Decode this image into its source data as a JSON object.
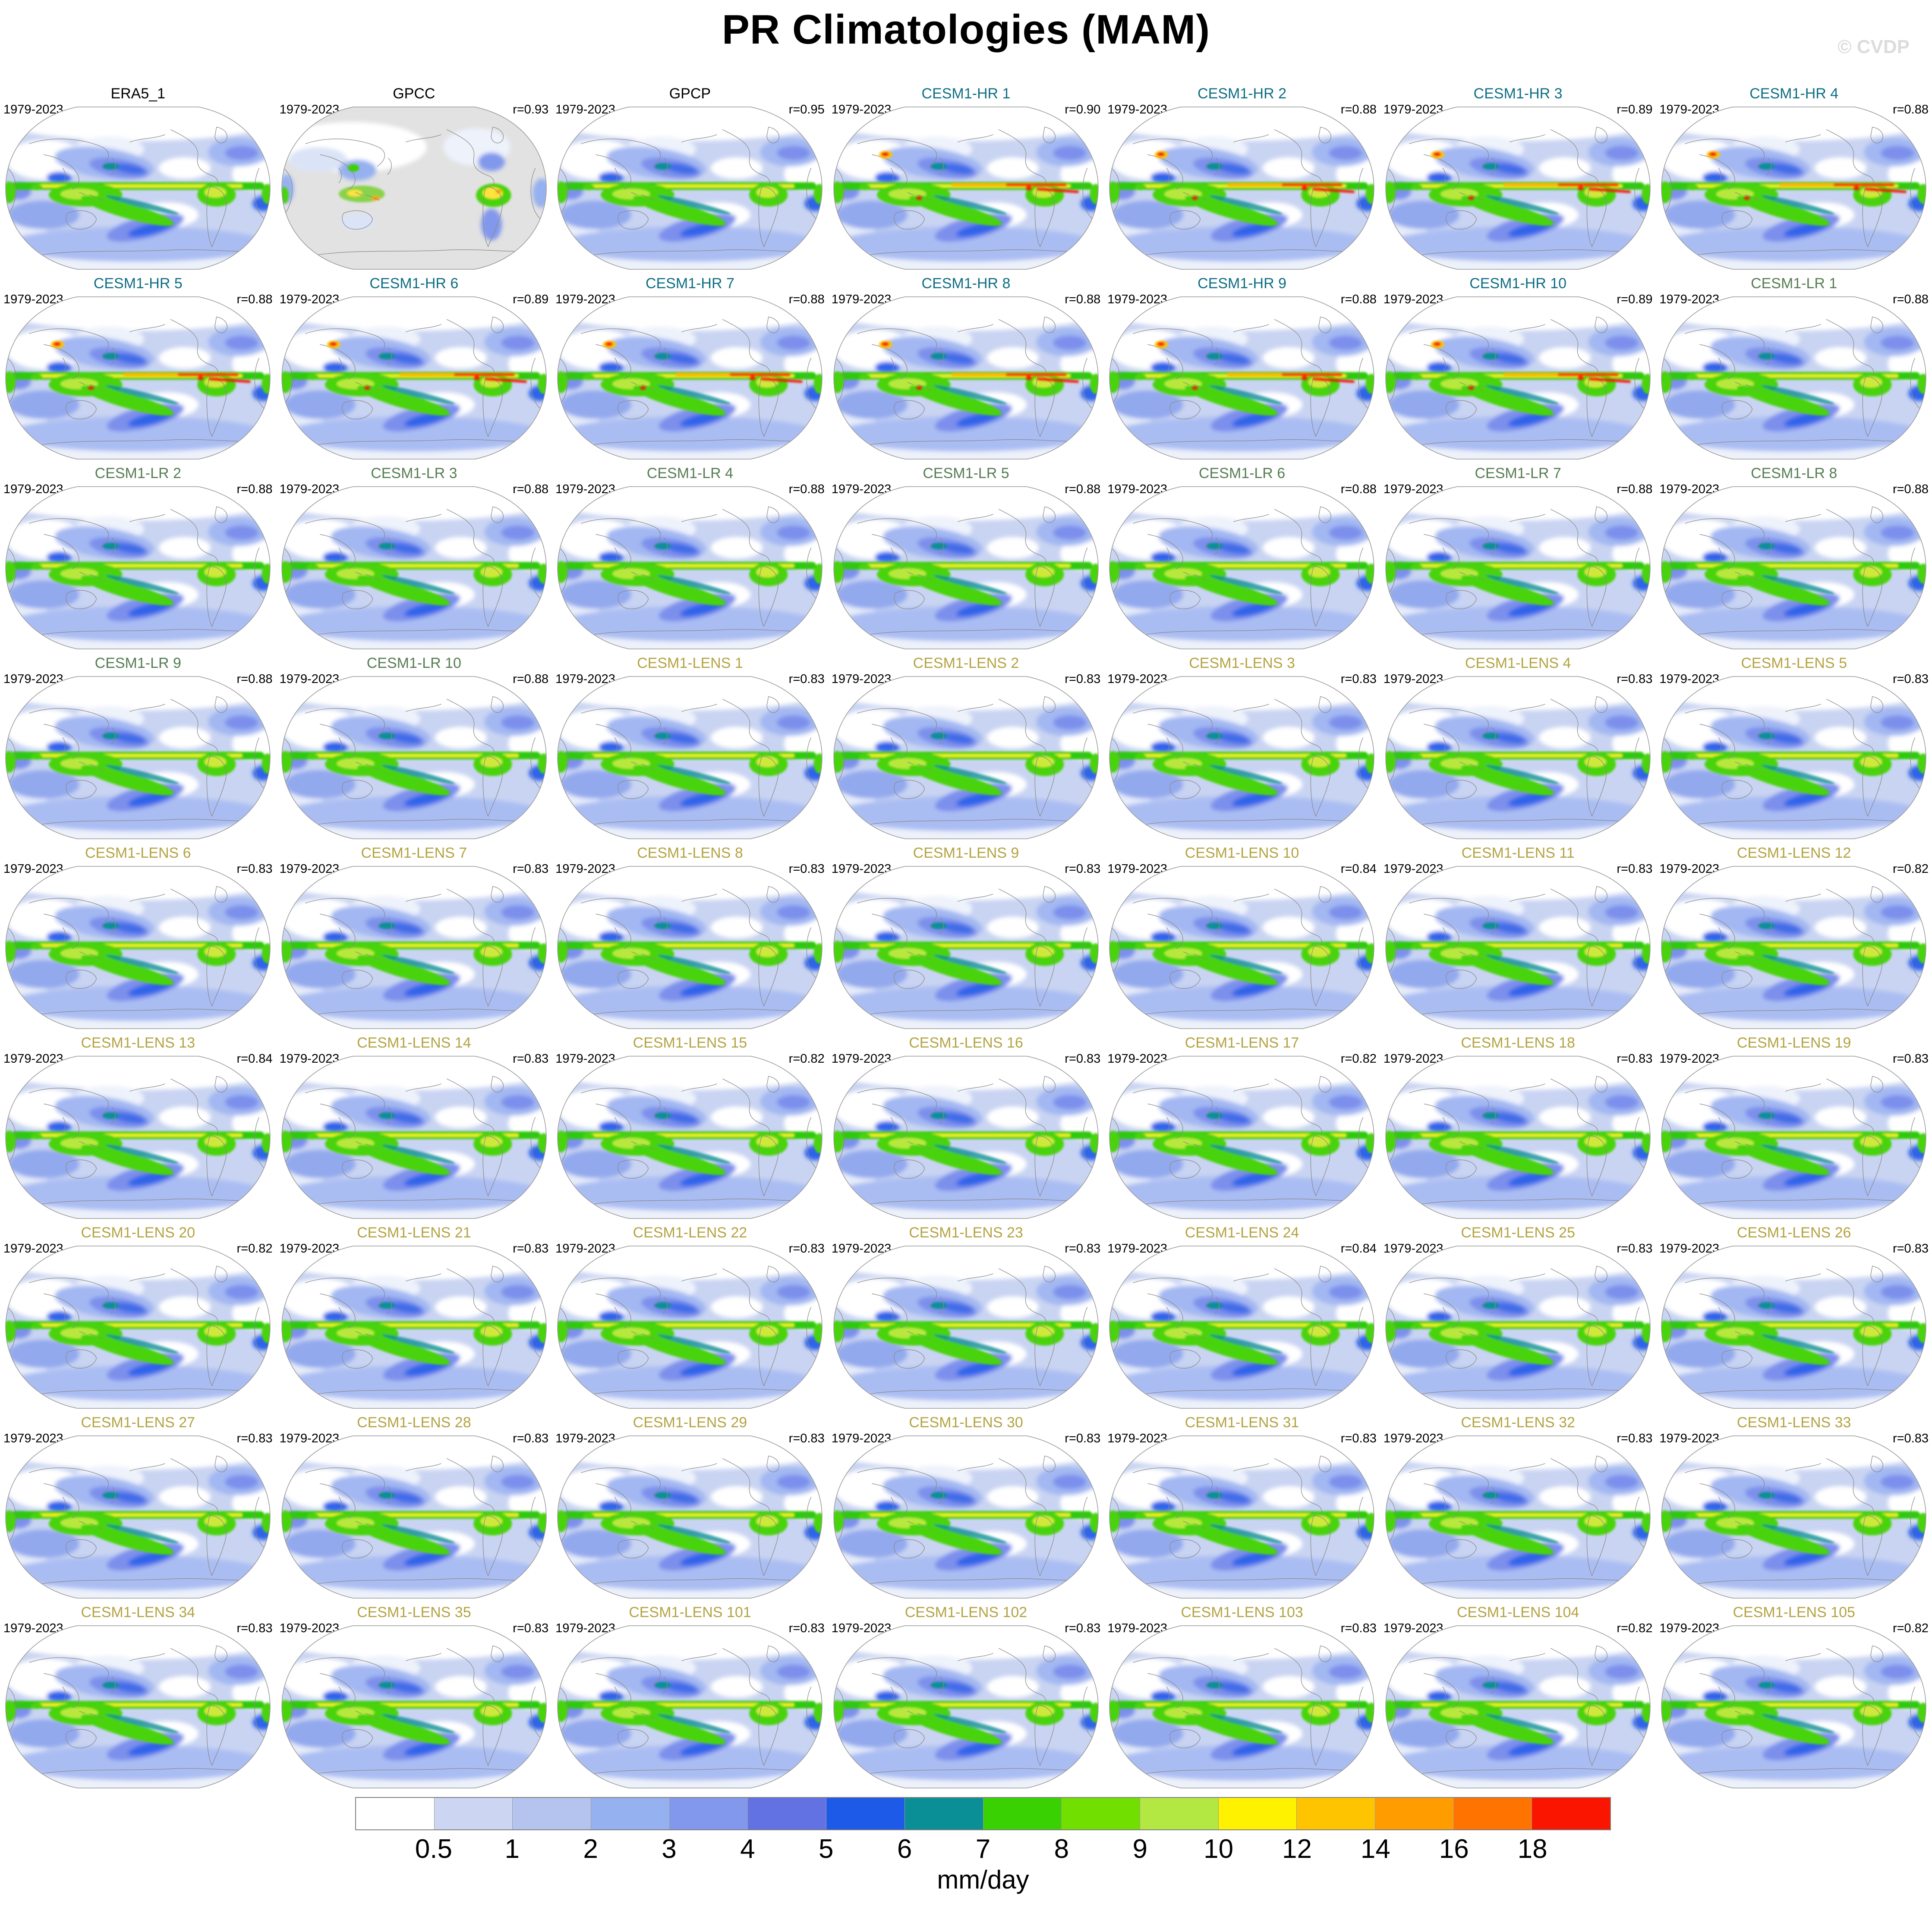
{
  "title": "PR Climatologies (MAM)",
  "watermark": "© CVDP",
  "period": "1979-2023",
  "group_colors": {
    "obs": "#000000",
    "hr": "#0e6e84",
    "lr": "#567d53",
    "lens": "#b4a342"
  },
  "panels": [
    {
      "name": "ERA5_1",
      "r": "",
      "group": "obs",
      "variant": "std"
    },
    {
      "name": "GPCC",
      "r": "r=0.93",
      "group": "obs",
      "variant": "gpcc"
    },
    {
      "name": "GPCP",
      "r": "r=0.95",
      "group": "obs",
      "variant": "std"
    },
    {
      "name": "CESM1-HR 1",
      "r": "r=0.90",
      "group": "hr",
      "variant": "hr"
    },
    {
      "name": "CESM1-HR 2",
      "r": "r=0.88",
      "group": "hr",
      "variant": "hr"
    },
    {
      "name": "CESM1-HR 3",
      "r": "r=0.89",
      "group": "hr",
      "variant": "hr"
    },
    {
      "name": "CESM1-HR 4",
      "r": "r=0.88",
      "group": "hr",
      "variant": "hr"
    },
    {
      "name": "CESM1-HR 5",
      "r": "r=0.88",
      "group": "hr",
      "variant": "hr"
    },
    {
      "name": "CESM1-HR 6",
      "r": "r=0.89",
      "group": "hr",
      "variant": "hr"
    },
    {
      "name": "CESM1-HR 7",
      "r": "r=0.88",
      "group": "hr",
      "variant": "hr"
    },
    {
      "name": "CESM1-HR 8",
      "r": "r=0.88",
      "group": "hr",
      "variant": "hr"
    },
    {
      "name": "CESM1-HR 9",
      "r": "r=0.88",
      "group": "hr",
      "variant": "hr"
    },
    {
      "name": "CESM1-HR 10",
      "r": "r=0.89",
      "group": "hr",
      "variant": "hr"
    },
    {
      "name": "CESM1-LR 1",
      "r": "r=0.88",
      "group": "lr",
      "variant": "std"
    },
    {
      "name": "CESM1-LR 2",
      "r": "r=0.88",
      "group": "lr",
      "variant": "std"
    },
    {
      "name": "CESM1-LR 3",
      "r": "r=0.88",
      "group": "lr",
      "variant": "std"
    },
    {
      "name": "CESM1-LR 4",
      "r": "r=0.88",
      "group": "lr",
      "variant": "std"
    },
    {
      "name": "CESM1-LR 5",
      "r": "r=0.88",
      "group": "lr",
      "variant": "std"
    },
    {
      "name": "CESM1-LR 6",
      "r": "r=0.88",
      "group": "lr",
      "variant": "std"
    },
    {
      "name": "CESM1-LR 7",
      "r": "r=0.88",
      "group": "lr",
      "variant": "std"
    },
    {
      "name": "CESM1-LR 8",
      "r": "r=0.88",
      "group": "lr",
      "variant": "std"
    },
    {
      "name": "CESM1-LR 9",
      "r": "r=0.88",
      "group": "lr",
      "variant": "std"
    },
    {
      "name": "CESM1-LR 10",
      "r": "r=0.88",
      "group": "lr",
      "variant": "std"
    },
    {
      "name": "CESM1-LENS 1",
      "r": "r=0.83",
      "group": "lens",
      "variant": "std"
    },
    {
      "name": "CESM1-LENS 2",
      "r": "r=0.83",
      "group": "lens",
      "variant": "std"
    },
    {
      "name": "CESM1-LENS 3",
      "r": "r=0.83",
      "group": "lens",
      "variant": "std"
    },
    {
      "name": "CESM1-LENS 4",
      "r": "r=0.83",
      "group": "lens",
      "variant": "std"
    },
    {
      "name": "CESM1-LENS 5",
      "r": "r=0.83",
      "group": "lens",
      "variant": "std"
    },
    {
      "name": "CESM1-LENS 6",
      "r": "r=0.83",
      "group": "lens",
      "variant": "std"
    },
    {
      "name": "CESM1-LENS 7",
      "r": "r=0.83",
      "group": "lens",
      "variant": "std"
    },
    {
      "name": "CESM1-LENS 8",
      "r": "r=0.83",
      "group": "lens",
      "variant": "std"
    },
    {
      "name": "CESM1-LENS 9",
      "r": "r=0.83",
      "group": "lens",
      "variant": "std"
    },
    {
      "name": "CESM1-LENS 10",
      "r": "r=0.84",
      "group": "lens",
      "variant": "std"
    },
    {
      "name": "CESM1-LENS 11",
      "r": "r=0.83",
      "group": "lens",
      "variant": "std"
    },
    {
      "name": "CESM1-LENS 12",
      "r": "r=0.82",
      "group": "lens",
      "variant": "std"
    },
    {
      "name": "CESM1-LENS 13",
      "r": "r=0.84",
      "group": "lens",
      "variant": "std"
    },
    {
      "name": "CESM1-LENS 14",
      "r": "r=0.83",
      "group": "lens",
      "variant": "std"
    },
    {
      "name": "CESM1-LENS 15",
      "r": "r=0.82",
      "group": "lens",
      "variant": "std"
    },
    {
      "name": "CESM1-LENS 16",
      "r": "r=0.83",
      "group": "lens",
      "variant": "std"
    },
    {
      "name": "CESM1-LENS 17",
      "r": "r=0.82",
      "group": "lens",
      "variant": "std"
    },
    {
      "name": "CESM1-LENS 18",
      "r": "r=0.83",
      "group": "lens",
      "variant": "std"
    },
    {
      "name": "CESM1-LENS 19",
      "r": "r=0.83",
      "group": "lens",
      "variant": "std"
    },
    {
      "name": "CESM1-LENS 20",
      "r": "r=0.82",
      "group": "lens",
      "variant": "std"
    },
    {
      "name": "CESM1-LENS 21",
      "r": "r=0.83",
      "group": "lens",
      "variant": "std"
    },
    {
      "name": "CESM1-LENS 22",
      "r": "r=0.83",
      "group": "lens",
      "variant": "std"
    },
    {
      "name": "CESM1-LENS 23",
      "r": "r=0.83",
      "group": "lens",
      "variant": "std"
    },
    {
      "name": "CESM1-LENS 24",
      "r": "r=0.84",
      "group": "lens",
      "variant": "std"
    },
    {
      "name": "CESM1-LENS 25",
      "r": "r=0.83",
      "group": "lens",
      "variant": "std"
    },
    {
      "name": "CESM1-LENS 26",
      "r": "r=0.83",
      "group": "lens",
      "variant": "std"
    },
    {
      "name": "CESM1-LENS 27",
      "r": "r=0.83",
      "group": "lens",
      "variant": "std"
    },
    {
      "name": "CESM1-LENS 28",
      "r": "r=0.83",
      "group": "lens",
      "variant": "std"
    },
    {
      "name": "CESM1-LENS 29",
      "r": "r=0.83",
      "group": "lens",
      "variant": "std"
    },
    {
      "name": "CESM1-LENS 30",
      "r": "r=0.83",
      "group": "lens",
      "variant": "std"
    },
    {
      "name": "CESM1-LENS 31",
      "r": "r=0.83",
      "group": "lens",
      "variant": "std"
    },
    {
      "name": "CESM1-LENS 32",
      "r": "r=0.83",
      "group": "lens",
      "variant": "std"
    },
    {
      "name": "CESM1-LENS 33",
      "r": "r=0.83",
      "group": "lens",
      "variant": "std"
    },
    {
      "name": "CESM1-LENS 34",
      "r": "r=0.83",
      "group": "lens",
      "variant": "std"
    },
    {
      "name": "CESM1-LENS 35",
      "r": "r=0.83",
      "group": "lens",
      "variant": "std"
    },
    {
      "name": "CESM1-LENS 101",
      "r": "r=0.83",
      "group": "lens",
      "variant": "std"
    },
    {
      "name": "CESM1-LENS 102",
      "r": "r=0.83",
      "group": "lens",
      "variant": "std"
    },
    {
      "name": "CESM1-LENS 103",
      "r": "r=0.83",
      "group": "lens",
      "variant": "std"
    },
    {
      "name": "CESM1-LENS 104",
      "r": "r=0.82",
      "group": "lens",
      "variant": "std"
    },
    {
      "name": "CESM1-LENS 105",
      "r": "r=0.82",
      "group": "lens",
      "variant": "std"
    }
  ],
  "colorbar": {
    "unit": "mm/day",
    "labels": [
      "0.5",
      "1",
      "2",
      "3",
      "4",
      "5",
      "6",
      "7",
      "8",
      "9",
      "10",
      "12",
      "14",
      "16",
      "18"
    ],
    "colors": [
      "#ffffff",
      "#ccd6f2",
      "#b5c4ee",
      "#96b1f0",
      "#8298ec",
      "#6272e3",
      "#1e5ae8",
      "#0b8f96",
      "#3ad103",
      "#71e000",
      "#b3e842",
      "#fff200",
      "#ffc400",
      "#ff9d00",
      "#ff7300",
      "#fa1500"
    ]
  },
  "chart_data": {
    "type": "heatmap",
    "title": "PR Climatologies (MAM)",
    "variable": "PR",
    "season": "MAM",
    "units": "mm/day",
    "period": "1979-2023",
    "colorbar_levels": [
      0.5,
      1,
      2,
      3,
      4,
      5,
      6,
      7,
      8,
      9,
      10,
      12,
      14,
      16,
      18
    ],
    "grid": {
      "rows": 9,
      "cols": 7
    },
    "panels": [
      {
        "name": "ERA5_1",
        "r": null
      },
      {
        "name": "GPCC",
        "r": 0.93
      },
      {
        "name": "GPCP",
        "r": 0.95
      },
      {
        "name": "CESM1-HR 1",
        "r": 0.9
      },
      {
        "name": "CESM1-HR 2",
        "r": 0.88
      },
      {
        "name": "CESM1-HR 3",
        "r": 0.89
      },
      {
        "name": "CESM1-HR 4",
        "r": 0.88
      },
      {
        "name": "CESM1-HR 5",
        "r": 0.88
      },
      {
        "name": "CESM1-HR 6",
        "r": 0.89
      },
      {
        "name": "CESM1-HR 7",
        "r": 0.88
      },
      {
        "name": "CESM1-HR 8",
        "r": 0.88
      },
      {
        "name": "CESM1-HR 9",
        "r": 0.88
      },
      {
        "name": "CESM1-HR 10",
        "r": 0.89
      },
      {
        "name": "CESM1-LR 1",
        "r": 0.88
      },
      {
        "name": "CESM1-LR 2",
        "r": 0.88
      },
      {
        "name": "CESM1-LR 3",
        "r": 0.88
      },
      {
        "name": "CESM1-LR 4",
        "r": 0.88
      },
      {
        "name": "CESM1-LR 5",
        "r": 0.88
      },
      {
        "name": "CESM1-LR 6",
        "r": 0.88
      },
      {
        "name": "CESM1-LR 7",
        "r": 0.88
      },
      {
        "name": "CESM1-LR 8",
        "r": 0.88
      },
      {
        "name": "CESM1-LR 9",
        "r": 0.88
      },
      {
        "name": "CESM1-LR 10",
        "r": 0.88
      },
      {
        "name": "CESM1-LENS 1",
        "r": 0.83
      },
      {
        "name": "CESM1-LENS 2",
        "r": 0.83
      },
      {
        "name": "CESM1-LENS 3",
        "r": 0.83
      },
      {
        "name": "CESM1-LENS 4",
        "r": 0.83
      },
      {
        "name": "CESM1-LENS 5",
        "r": 0.83
      },
      {
        "name": "CESM1-LENS 6",
        "r": 0.83
      },
      {
        "name": "CESM1-LENS 7",
        "r": 0.83
      },
      {
        "name": "CESM1-LENS 8",
        "r": 0.83
      },
      {
        "name": "CESM1-LENS 9",
        "r": 0.83
      },
      {
        "name": "CESM1-LENS 10",
        "r": 0.84
      },
      {
        "name": "CESM1-LENS 11",
        "r": 0.83
      },
      {
        "name": "CESM1-LENS 12",
        "r": 0.82
      },
      {
        "name": "CESM1-LENS 13",
        "r": 0.84
      },
      {
        "name": "CESM1-LENS 14",
        "r": 0.83
      },
      {
        "name": "CESM1-LENS 15",
        "r": 0.82
      },
      {
        "name": "CESM1-LENS 16",
        "r": 0.83
      },
      {
        "name": "CESM1-LENS 17",
        "r": 0.82
      },
      {
        "name": "CESM1-LENS 18",
        "r": 0.83
      },
      {
        "name": "CESM1-LENS 19",
        "r": 0.83
      },
      {
        "name": "CESM1-LENS 20",
        "r": 0.82
      },
      {
        "name": "CESM1-LENS 21",
        "r": 0.83
      },
      {
        "name": "CESM1-LENS 22",
        "r": 0.83
      },
      {
        "name": "CESM1-LENS 23",
        "r": 0.83
      },
      {
        "name": "CESM1-LENS 24",
        "r": 0.84
      },
      {
        "name": "CESM1-LENS 25",
        "r": 0.83
      },
      {
        "name": "CESM1-LENS 26",
        "r": 0.83
      },
      {
        "name": "CESM1-LENS 27",
        "r": 0.83
      },
      {
        "name": "CESM1-LENS 28",
        "r": 0.83
      },
      {
        "name": "CESM1-LENS 29",
        "r": 0.83
      },
      {
        "name": "CESM1-LENS 30",
        "r": 0.83
      },
      {
        "name": "CESM1-LENS 31",
        "r": 0.83
      },
      {
        "name": "CESM1-LENS 32",
        "r": 0.83
      },
      {
        "name": "CESM1-LENS 33",
        "r": 0.83
      },
      {
        "name": "CESM1-LENS 34",
        "r": 0.83
      },
      {
        "name": "CESM1-LENS 35",
        "r": 0.83
      },
      {
        "name": "CESM1-LENS 101",
        "r": 0.83
      },
      {
        "name": "CESM1-LENS 102",
        "r": 0.83
      },
      {
        "name": "CESM1-LENS 103",
        "r": 0.83
      },
      {
        "name": "CESM1-LENS 104",
        "r": 0.82
      },
      {
        "name": "CESM1-LENS 105",
        "r": 0.82
      }
    ]
  }
}
